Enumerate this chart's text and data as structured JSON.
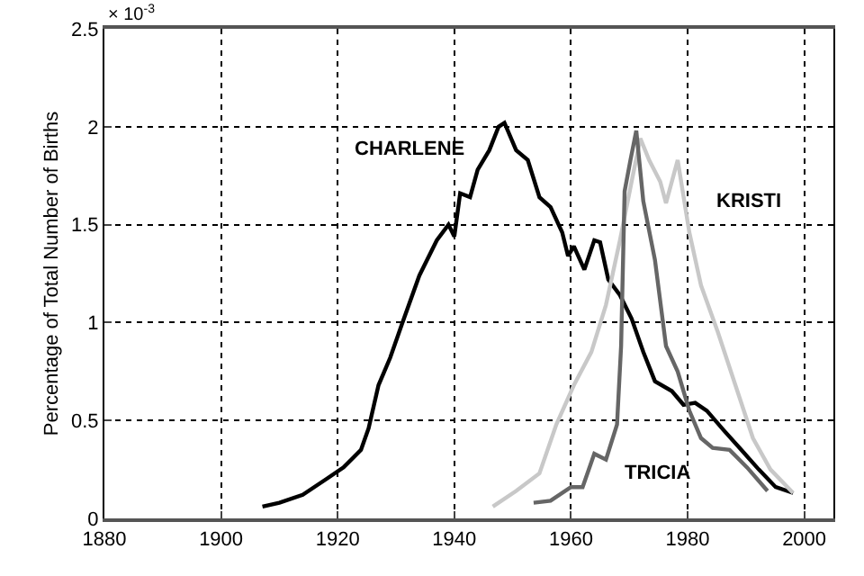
{
  "chart_data": {
    "type": "line",
    "ylabel": "Percentage of Total Number of Births",
    "xlim": [
      1880,
      2005
    ],
    "xticks": [
      1880,
      1900,
      1920,
      1940,
      1960,
      1980,
      2000
    ],
    "ylim": [
      0,
      2.5
    ],
    "yticks": [
      0,
      0.5,
      1,
      1.5,
      2,
      2.5
    ],
    "grid": true,
    "legend": false,
    "marker": "none",
    "line_style": "solid",
    "series": [
      {
        "name": "CHARLENE",
        "color": "#000000",
        "x": [
          1907.1,
          1910,
          1914,
          1918,
          1921,
          1924,
          1925.3,
          1927,
          1929,
          1931,
          1934,
          1937,
          1939,
          1940,
          1941,
          1942.7,
          1944,
          1946,
          1947.6,
          1948.6,
          1950.6,
          1952.6,
          1954.6,
          1956.5,
          1958.5,
          1959.5,
          1960.5,
          1962.3,
          1964,
          1965,
          1966.4,
          1968.4,
          1970.4,
          1972.4,
          1974.4,
          1977.3,
          1979.3,
          1981.3,
          1983.3,
          1986.2,
          1989.2,
          1992.2,
          1995.1,
          1998.1
        ],
        "values": [
          0.06,
          0.08,
          0.12,
          0.2,
          0.26,
          0.35,
          0.46,
          0.68,
          0.82,
          0.99,
          1.24,
          1.42,
          1.5,
          1.44,
          1.66,
          1.64,
          1.78,
          1.88,
          2.0,
          2.02,
          1.88,
          1.83,
          1.64,
          1.59,
          1.46,
          1.34,
          1.39,
          1.27,
          1.42,
          1.41,
          1.22,
          1.14,
          1.02,
          0.85,
          0.7,
          0.65,
          0.58,
          0.59,
          0.55,
          0.45,
          0.35,
          0.25,
          0.16,
          0.13
        ]
      },
      {
        "name": "KRISTI",
        "color": "#c8c8c8",
        "x": [
          1946.6,
          1950.6,
          1954.6,
          1957.5,
          1960.5,
          1963.5,
          1966,
          1968.4,
          1970.4,
          1971.9,
          1973.4,
          1975.3,
          1976.3,
          1978.3,
          1980.3,
          1982.3,
          1985.2,
          1988.2,
          1991.2,
          1994.2,
          1998.1
        ],
        "values": [
          0.06,
          0.14,
          0.23,
          0.48,
          0.68,
          0.85,
          1.09,
          1.42,
          1.72,
          1.94,
          1.83,
          1.72,
          1.61,
          1.83,
          1.46,
          1.19,
          0.95,
          0.68,
          0.41,
          0.25,
          0.13
        ]
      },
      {
        "name": "TRICIA",
        "color": "#666666",
        "x": [
          1953.6,
          1956.5,
          1960,
          1962,
          1964,
          1966,
          1967.9,
          1968.6,
          1969.2,
          1970.2,
          1971.2,
          1972.4,
          1974.4,
          1976.3,
          1978.3,
          1980.3,
          1982.3,
          1984.3,
          1987.2,
          1990.2,
          1993.7
        ],
        "values": [
          0.08,
          0.09,
          0.16,
          0.16,
          0.33,
          0.3,
          0.48,
          0.88,
          1.67,
          1.83,
          1.98,
          1.62,
          1.32,
          0.88,
          0.75,
          0.55,
          0.41,
          0.36,
          0.35,
          0.26,
          0.14
        ]
      }
    ],
    "annotations": [
      "× 10$^{-3}$"
    ]
  }
}
